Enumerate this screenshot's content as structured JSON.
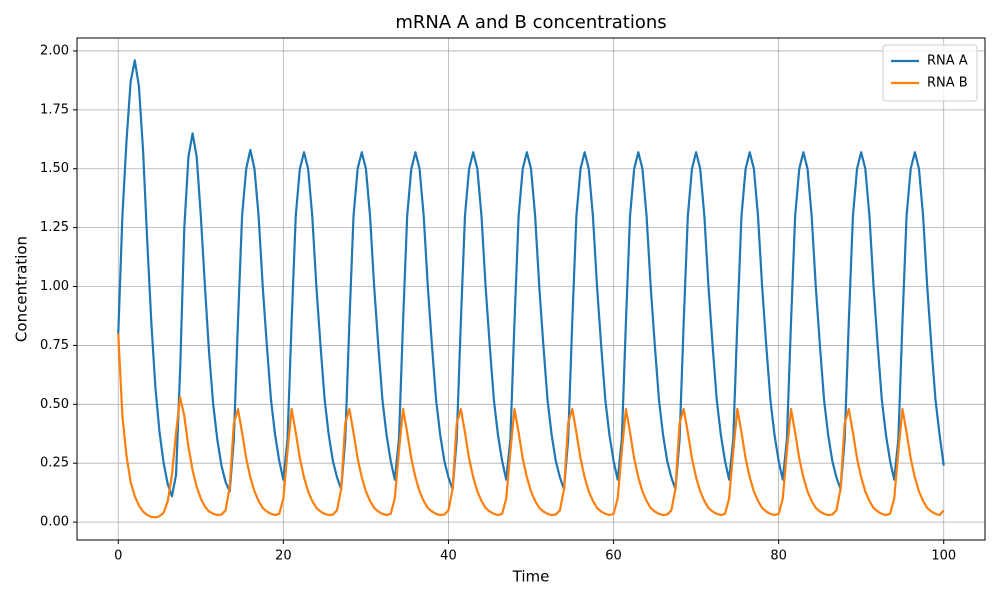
{
  "chart_data": {
    "type": "line",
    "title": "mRNA A and B concentrations",
    "x_label": "Time",
    "y_label": "Concentration",
    "x": [
      0,
      0.5,
      1,
      1.5,
      2,
      2.5,
      3,
      3.5,
      4,
      4.5,
      5,
      5.5,
      6,
      6.5,
      7,
      7.5,
      8,
      8.5,
      9,
      9.5,
      10,
      10.5,
      11,
      11.5,
      12,
      12.5,
      13,
      13.5,
      14,
      14.5,
      15,
      15.5,
      16,
      16.5,
      17,
      17.5,
      18,
      18.5,
      19,
      19.5,
      20,
      20.5,
      21,
      21.5,
      22,
      22.5,
      23,
      23.5,
      24,
      24.5,
      25,
      25.5,
      26,
      26.5,
      27,
      27.5,
      28,
      28.5,
      29,
      29.5,
      30,
      30.5,
      31,
      31.5,
      32,
      32.5,
      33,
      33.5,
      34,
      34.5,
      35,
      35.5,
      36,
      36.5,
      37,
      37.5,
      38,
      38.5,
      39,
      39.5,
      40,
      40.5,
      41,
      41.5,
      42,
      42.5,
      43,
      43.5,
      44,
      44.5,
      45,
      45.5,
      46,
      46.5,
      47,
      47.5,
      48,
      48.5,
      49,
      49.5,
      50,
      50.5,
      51,
      51.5,
      52,
      52.5,
      53,
      53.5,
      54,
      54.5,
      55,
      55.5,
      56,
      56.5,
      57,
      57.5,
      58,
      58.5,
      59,
      59.5,
      60,
      60.5,
      61,
      61.5,
      62,
      62.5,
      63,
      63.5,
      64,
      64.5,
      65,
      65.5,
      66,
      66.5,
      67,
      67.5,
      68,
      68.5,
      69,
      69.5,
      70,
      70.5,
      71,
      71.5,
      72,
      72.5,
      73,
      73.5,
      74,
      74.5,
      75,
      75.5,
      76,
      76.5,
      77,
      77.5,
      78,
      78.5,
      79,
      79.5,
      80,
      80.5,
      81,
      81.5,
      82,
      82.5,
      83,
      83.5,
      84,
      84.5,
      85,
      85.5,
      86,
      86.5,
      87,
      87.5,
      88,
      88.5,
      89,
      89.5,
      90,
      90.5,
      91,
      91.5,
      92,
      92.5,
      93,
      93.5,
      94,
      94.5,
      95,
      95.5,
      96,
      96.5,
      97,
      97.5,
      98,
      98.5,
      99,
      99.5,
      100
    ],
    "series": [
      {
        "name": "RNA A",
        "color": "#1f77b4",
        "values": [
          0.8,
          1.3,
          1.62,
          1.87,
          1.96,
          1.85,
          1.58,
          1.2,
          0.85,
          0.57,
          0.38,
          0.25,
          0.16,
          0.11,
          0.2,
          0.65,
          1.25,
          1.55,
          1.65,
          1.55,
          1.3,
          1.0,
          0.72,
          0.5,
          0.35,
          0.24,
          0.17,
          0.13,
          0.35,
          0.85,
          1.3,
          1.5,
          1.58,
          1.5,
          1.3,
          1.0,
          0.75,
          0.52,
          0.37,
          0.26,
          0.18,
          0.35,
          0.85,
          1.3,
          1.5,
          1.57,
          1.5,
          1.3,
          1.0,
          0.75,
          0.52,
          0.37,
          0.26,
          0.19,
          0.14,
          0.35,
          0.85,
          1.3,
          1.5,
          1.57,
          1.5,
          1.3,
          1.0,
          0.75,
          0.52,
          0.37,
          0.26,
          0.18,
          0.35,
          0.85,
          1.3,
          1.5,
          1.57,
          1.5,
          1.3,
          1.0,
          0.75,
          0.52,
          0.37,
          0.26,
          0.19,
          0.14,
          0.35,
          0.85,
          1.3,
          1.5,
          1.57,
          1.5,
          1.3,
          1.0,
          0.75,
          0.52,
          0.37,
          0.26,
          0.18,
          0.35,
          0.85,
          1.3,
          1.5,
          1.57,
          1.5,
          1.3,
          1.0,
          0.75,
          0.52,
          0.37,
          0.26,
          0.19,
          0.14,
          0.35,
          0.85,
          1.3,
          1.5,
          1.57,
          1.5,
          1.3,
          1.0,
          0.75,
          0.52,
          0.37,
          0.26,
          0.18,
          0.35,
          0.85,
          1.3,
          1.5,
          1.57,
          1.5,
          1.3,
          1.0,
          0.75,
          0.52,
          0.37,
          0.26,
          0.19,
          0.14,
          0.35,
          0.85,
          1.3,
          1.5,
          1.57,
          1.5,
          1.3,
          1.0,
          0.75,
          0.52,
          0.37,
          0.26,
          0.18,
          0.35,
          0.85,
          1.3,
          1.5,
          1.57,
          1.5,
          1.3,
          1.0,
          0.75,
          0.52,
          0.37,
          0.26,
          0.18,
          0.35,
          0.85,
          1.3,
          1.5,
          1.57,
          1.5,
          1.3,
          1.0,
          0.75,
          0.52,
          0.37,
          0.26,
          0.19,
          0.14,
          0.35,
          0.85,
          1.3,
          1.5,
          1.57,
          1.5,
          1.3,
          1.0,
          0.75,
          0.52,
          0.37,
          0.26,
          0.18,
          0.35,
          0.85,
          1.3,
          1.5,
          1.57,
          1.5,
          1.3,
          1.0,
          0.75,
          0.52,
          0.37,
          0.24
        ]
      },
      {
        "name": "RNA B",
        "color": "#ff7f0e",
        "values": [
          0.8,
          0.45,
          0.28,
          0.17,
          0.11,
          0.07,
          0.045,
          0.03,
          0.022,
          0.02,
          0.025,
          0.04,
          0.09,
          0.2,
          0.38,
          0.53,
          0.45,
          0.32,
          0.22,
          0.15,
          0.1,
          0.065,
          0.045,
          0.035,
          0.03,
          0.032,
          0.05,
          0.15,
          0.42,
          0.48,
          0.38,
          0.27,
          0.19,
          0.13,
          0.09,
          0.06,
          0.045,
          0.035,
          0.03,
          0.035,
          0.1,
          0.3,
          0.48,
          0.38,
          0.27,
          0.19,
          0.13,
          0.09,
          0.06,
          0.045,
          0.035,
          0.03,
          0.032,
          0.05,
          0.14,
          0.42,
          0.48,
          0.38,
          0.27,
          0.19,
          0.13,
          0.09,
          0.06,
          0.045,
          0.035,
          0.03,
          0.035,
          0.1,
          0.3,
          0.48,
          0.38,
          0.27,
          0.19,
          0.13,
          0.09,
          0.06,
          0.045,
          0.035,
          0.03,
          0.032,
          0.05,
          0.14,
          0.42,
          0.48,
          0.38,
          0.27,
          0.19,
          0.13,
          0.09,
          0.06,
          0.045,
          0.035,
          0.03,
          0.035,
          0.1,
          0.3,
          0.48,
          0.38,
          0.27,
          0.19,
          0.13,
          0.09,
          0.06,
          0.045,
          0.035,
          0.03,
          0.032,
          0.05,
          0.14,
          0.42,
          0.48,
          0.38,
          0.27,
          0.19,
          0.13,
          0.09,
          0.06,
          0.045,
          0.035,
          0.03,
          0.035,
          0.1,
          0.3,
          0.48,
          0.38,
          0.27,
          0.19,
          0.13,
          0.09,
          0.06,
          0.045,
          0.035,
          0.03,
          0.032,
          0.05,
          0.14,
          0.42,
          0.48,
          0.38,
          0.27,
          0.19,
          0.13,
          0.09,
          0.06,
          0.045,
          0.035,
          0.03,
          0.035,
          0.1,
          0.3,
          0.48,
          0.38,
          0.27,
          0.19,
          0.13,
          0.09,
          0.06,
          0.045,
          0.035,
          0.03,
          0.035,
          0.1,
          0.3,
          0.48,
          0.38,
          0.27,
          0.19,
          0.13,
          0.09,
          0.06,
          0.045,
          0.035,
          0.03,
          0.032,
          0.05,
          0.14,
          0.42,
          0.48,
          0.38,
          0.27,
          0.19,
          0.13,
          0.09,
          0.06,
          0.045,
          0.035,
          0.03,
          0.035,
          0.1,
          0.3,
          0.48,
          0.38,
          0.27,
          0.19,
          0.13,
          0.09,
          0.06,
          0.045,
          0.035,
          0.03,
          0.05
        ]
      }
    ],
    "xlim": [
      -5,
      105
    ],
    "ylim": [
      -0.076,
      2.055
    ],
    "xticks": [
      0,
      20,
      40,
      60,
      80,
      100
    ],
    "yticks": [
      {
        "value": 0,
        "label": "0.00"
      },
      {
        "value": 0.25,
        "label": "0.25"
      },
      {
        "value": 0.5,
        "label": "0.50"
      },
      {
        "value": 0.75,
        "label": "0.75"
      },
      {
        "value": 1,
        "label": "1.00"
      },
      {
        "value": 1.25,
        "label": "1.25"
      },
      {
        "value": 1.5,
        "label": "1.50"
      },
      {
        "value": 1.75,
        "label": "1.75"
      },
      {
        "value": 2,
        "label": "2.00"
      }
    ],
    "grid": true,
    "legend": "upper-right"
  }
}
